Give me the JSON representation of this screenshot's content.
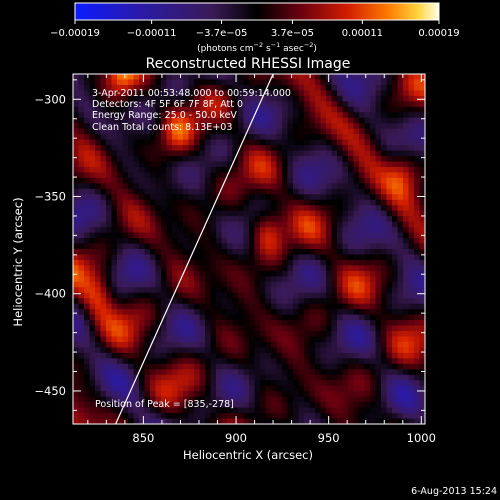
{
  "chart_data": {
    "type": "heatmap",
    "title": "Reconstructed RHESSI Image",
    "xlabel": "Heliocentric X (arcsec)",
    "ylabel": "Heliocentric Y (arcsec)",
    "xlim": [
      812,
      1002
    ],
    "ylim": [
      -467,
      -287
    ],
    "x_ticks": [
      {
        "value": 850,
        "label": "850"
      },
      {
        "value": 900,
        "label": "900"
      },
      {
        "value": 950,
        "label": "950"
      },
      {
        "value": 1000,
        "label": "1000"
      }
    ],
    "y_ticks": [
      {
        "value": -300,
        "label": "−300"
      },
      {
        "value": -350,
        "label": "−350"
      },
      {
        "value": -400,
        "label": "−400"
      },
      {
        "value": -450,
        "label": "−450"
      }
    ],
    "colorbar": {
      "range": [
        -0.00019,
        0.00019
      ],
      "tick_values": [
        -0.00019,
        -0.00011,
        -3.7e-05,
        3.7e-05,
        0.00011,
        0.00019
      ],
      "tick_labels": [
        "−0.00019",
        "−0.00011",
        "−3.7e−05",
        "3.7e−05",
        "0.00011",
        "0.00019"
      ],
      "units_text": "(photons cm",
      "units_exp1": "−2",
      "units_mid": " s",
      "units_exp2": "−1",
      "units_end": " asec",
      "units_exp3": "−2",
      "units_close": ")"
    },
    "annotations": [
      "3-Apr-2011 00:53:48.000 to 00:59:14.000",
      "Detectors: 4F 5F 6F 7F 8F, Att 0",
      "Energy Range: 25.0 - 50.0 keV",
      "Clean     Total counts: 8.13E+03"
    ],
    "peak_label": "Position of Peak = [835,-278]",
    "limb_line": {
      "x": [
        835,
        920
      ],
      "y": [
        -467,
        -287
      ]
    },
    "intensity_peaks": [
      {
        "x": 917,
        "y": -367,
        "value": 1.0
      },
      {
        "x": 838,
        "y": -287,
        "value": 1.0
      },
      {
        "x": 826,
        "y": -400,
        "value": 0.85
      },
      {
        "x": 990,
        "y": -337,
        "value": 0.8
      },
      {
        "x": 868,
        "y": -318,
        "value": 0.75
      }
    ]
  },
  "footer": {
    "timestamp": "6-Aug-2013 15:24"
  }
}
